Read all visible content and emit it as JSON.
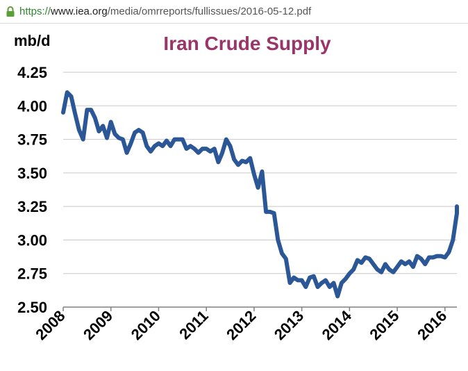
{
  "browser": {
    "url_scheme": "https://",
    "url_host": "www.iea.org",
    "url_path": "/media/omrreports/fullissues/2016-05-12.pdf"
  },
  "colors": {
    "title": "#9b3468",
    "line": "#2b5797",
    "grid": "#c8c8c8",
    "axis": "#808080",
    "lock": "#5a9e3a"
  },
  "chart_data": {
    "type": "line",
    "title": "Iran Crude Supply",
    "ylabel": "mb/d",
    "xlabel": "",
    "ylim": [
      2.5,
      4.25
    ],
    "xlim": [
      2008.0,
      2016.25
    ],
    "yticks": [
      "4.25",
      "4.00",
      "3.75",
      "3.50",
      "3.25",
      "3.00",
      "2.75",
      "2.50"
    ],
    "xticks": [
      "2008",
      "2009",
      "2010",
      "2011",
      "2012",
      "2013",
      "2014",
      "2015",
      "2016"
    ],
    "grid": true,
    "series": [
      {
        "name": "",
        "x": [
          2008.0,
          2008.083,
          2008.167,
          2008.25,
          2008.333,
          2008.417,
          2008.5,
          2008.583,
          2008.667,
          2008.75,
          2008.833,
          2008.917,
          2009.0,
          2009.083,
          2009.167,
          2009.25,
          2009.333,
          2009.417,
          2009.5,
          2009.583,
          2009.667,
          2009.75,
          2009.833,
          2009.917,
          2010.0,
          2010.083,
          2010.167,
          2010.25,
          2010.333,
          2010.417,
          2010.5,
          2010.583,
          2010.667,
          2010.75,
          2010.833,
          2010.917,
          2011.0,
          2011.083,
          2011.167,
          2011.25,
          2011.333,
          2011.417,
          2011.5,
          2011.583,
          2011.667,
          2011.75,
          2011.833,
          2011.917,
          2012.0,
          2012.083,
          2012.167,
          2012.25,
          2012.333,
          2012.417,
          2012.5,
          2012.583,
          2012.667,
          2012.75,
          2012.833,
          2012.917,
          2013.0,
          2013.083,
          2013.167,
          2013.25,
          2013.333,
          2013.417,
          2013.5,
          2013.583,
          2013.667,
          2013.75,
          2013.833,
          2013.917,
          2014.0,
          2014.083,
          2014.167,
          2014.25,
          2014.333,
          2014.417,
          2014.5,
          2014.583,
          2014.667,
          2014.75,
          2014.833,
          2014.917,
          2015.0,
          2015.083,
          2015.167,
          2015.25,
          2015.333,
          2015.417,
          2015.5,
          2015.583,
          2015.667,
          2015.75,
          2015.833,
          2015.917,
          2016.0,
          2016.083,
          2016.167,
          2016.25,
          2016.25
        ],
        "values": [
          3.95,
          4.1,
          4.07,
          3.94,
          3.82,
          3.75,
          3.97,
          3.97,
          3.91,
          3.81,
          3.85,
          3.76,
          3.88,
          3.79,
          3.76,
          3.75,
          3.65,
          3.72,
          3.8,
          3.82,
          3.8,
          3.7,
          3.66,
          3.7,
          3.72,
          3.7,
          3.74,
          3.7,
          3.75,
          3.75,
          3.75,
          3.68,
          3.7,
          3.68,
          3.65,
          3.68,
          3.68,
          3.66,
          3.68,
          3.58,
          3.65,
          3.75,
          3.7,
          3.6,
          3.56,
          3.59,
          3.58,
          3.61,
          3.49,
          3.39,
          3.51,
          3.21,
          3.21,
          3.2,
          3.0,
          2.9,
          2.86,
          2.68,
          2.72,
          2.7,
          2.7,
          2.65,
          2.72,
          2.73,
          2.65,
          2.68,
          2.7,
          2.65,
          2.68,
          2.58,
          2.68,
          2.71,
          2.75,
          2.78,
          2.85,
          2.83,
          2.87,
          2.86,
          2.82,
          2.78,
          2.76,
          2.82,
          2.78,
          2.76,
          2.8,
          2.84,
          2.82,
          2.84,
          2.8,
          2.88,
          2.86,
          2.82,
          2.87,
          2.87,
          2.88,
          2.88,
          2.87,
          2.91,
          3.0,
          3.2,
          3.25
        ]
      }
    ]
  }
}
